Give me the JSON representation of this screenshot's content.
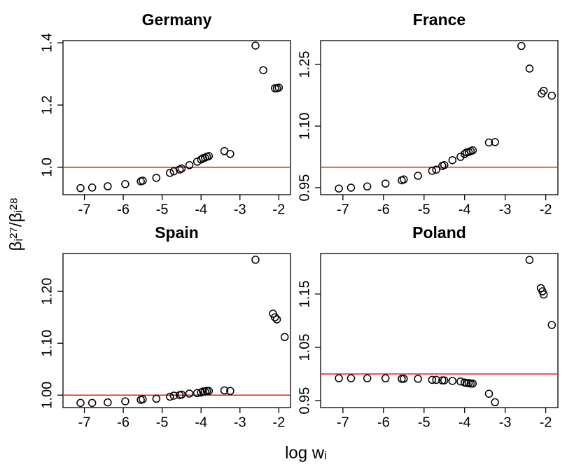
{
  "xlabel": "log wᵢ",
  "ylabel": "βᵢ²⁷/βᵢ²⁸",
  "chart_data": [
    {
      "type": "scatter",
      "title": "Germany",
      "x": [
        -7.1,
        -6.8,
        -6.4,
        -5.95,
        -5.55,
        -5.5,
        -5.15,
        -4.8,
        -4.7,
        -4.55,
        -4.5,
        -4.3,
        -4.1,
        -4.0,
        -3.95,
        -3.9,
        -3.85,
        -3.8,
        -3.4,
        -3.25,
        -2.6,
        -2.4,
        -2.1,
        -2.05,
        -2.0
      ],
      "y": [
        0.933,
        0.935,
        0.939,
        0.946,
        0.955,
        0.957,
        0.966,
        0.982,
        0.987,
        0.993,
        0.996,
        1.007,
        1.018,
        1.025,
        1.029,
        1.031,
        1.034,
        1.036,
        1.052,
        1.043,
        1.391,
        1.312,
        1.254,
        1.254,
        1.256
      ],
      "xlim": [
        -7.55,
        -1.7
      ],
      "ylim": [
        0.912,
        1.407
      ],
      "xticks": [
        -7,
        -6,
        -5,
        -4,
        -3,
        -2
      ],
      "yticks": [
        {
          "value": 1.0,
          "label": "1.0"
        },
        {
          "value": 1.2,
          "label": "1.2"
        },
        {
          "value": 1.4,
          "label": "1.4"
        }
      ],
      "hline": 1,
      "hline_color": "#e8201a",
      "color": "#000000"
    },
    {
      "type": "scatter",
      "title": "France",
      "x": [
        -7.1,
        -6.8,
        -6.4,
        -5.95,
        -5.55,
        -5.5,
        -5.15,
        -4.8,
        -4.7,
        -4.55,
        -4.5,
        -4.3,
        -4.1,
        -4.0,
        -3.95,
        -3.9,
        -3.85,
        -3.8,
        -3.4,
        -3.25,
        -2.6,
        -2.4,
        -2.1,
        -2.05,
        -1.85
      ],
      "y": [
        0.948,
        0.95,
        0.953,
        0.96,
        0.968,
        0.97,
        0.979,
        0.991,
        0.994,
        1.003,
        1.005,
        1.017,
        1.025,
        1.032,
        1.036,
        1.037,
        1.039,
        1.041,
        1.06,
        1.061,
        1.295,
        1.24,
        1.179,
        1.186,
        1.174
      ],
      "xlim": [
        -7.55,
        -1.7
      ],
      "ylim": [
        0.933,
        1.308
      ],
      "xticks": [
        -7,
        -6,
        -5,
        -4,
        -3,
        -2
      ],
      "yticks": [
        0.95,
        {
          "value": 1.1,
          "label": "1.10"
        },
        {
          "value": 1.25,
          "label": "1.25"
        }
      ],
      "hline": 1,
      "hline_color": "#e8201a",
      "color": "#000000"
    },
    {
      "type": "scatter",
      "title": "Spain",
      "x": [
        -7.1,
        -6.8,
        -6.4,
        -5.95,
        -5.55,
        -5.5,
        -5.15,
        -4.8,
        -4.7,
        -4.55,
        -4.5,
        -4.3,
        -4.1,
        -4.0,
        -3.95,
        -3.9,
        -3.85,
        -3.8,
        -3.4,
        -3.25,
        -2.6,
        -2.15,
        -2.1,
        -2.05,
        -1.85
      ],
      "y": [
        0.985,
        0.985,
        0.986,
        0.988,
        0.991,
        0.992,
        0.993,
        0.997,
        0.999,
        1.0,
        1.001,
        1.003,
        1.004,
        1.005,
        1.007,
        1.007,
        1.008,
        1.008,
        1.009,
        1.008,
        1.261,
        1.157,
        1.15,
        1.146,
        1.112
      ],
      "xlim": [
        -7.55,
        -1.7
      ],
      "ylim": [
        0.976,
        1.273
      ],
      "xticks": [
        -7,
        -6,
        -5,
        -4,
        -3,
        -2
      ],
      "yticks": [
        {
          "value": 1.0,
          "label": "1.00"
        },
        {
          "value": 1.1,
          "label": "1.10"
        },
        {
          "value": 1.2,
          "label": "1.20"
        }
      ],
      "hline": 1,
      "hline_color": "#e8201a",
      "color": "#000000"
    },
    {
      "type": "scatter",
      "title": "Poland",
      "x": [
        -7.1,
        -6.8,
        -6.4,
        -5.95,
        -5.55,
        -5.5,
        -5.15,
        -4.8,
        -4.7,
        -4.55,
        -4.5,
        -4.3,
        -4.1,
        -4.0,
        -3.95,
        -3.9,
        -3.85,
        -3.8,
        -3.4,
        -3.25,
        -2.4,
        -2.12,
        -2.08,
        -2.05,
        -1.85
      ],
      "y": [
        0.992,
        0.992,
        0.992,
        0.992,
        0.991,
        0.991,
        0.991,
        0.989,
        0.989,
        0.988,
        0.988,
        0.987,
        0.986,
        0.984,
        0.983,
        0.983,
        0.982,
        0.982,
        0.963,
        0.947,
        1.214,
        1.161,
        1.155,
        1.149,
        1.092
      ],
      "xlim": [
        -7.55,
        -1.7
      ],
      "ylim": [
        0.937,
        1.226
      ],
      "xticks": [
        -7,
        -6,
        -5,
        -4,
        -3,
        -2
      ],
      "yticks": [
        0.95,
        1.05,
        1.15
      ],
      "hline": 1,
      "hline_color": "#e8201a",
      "color": "#000000"
    }
  ]
}
